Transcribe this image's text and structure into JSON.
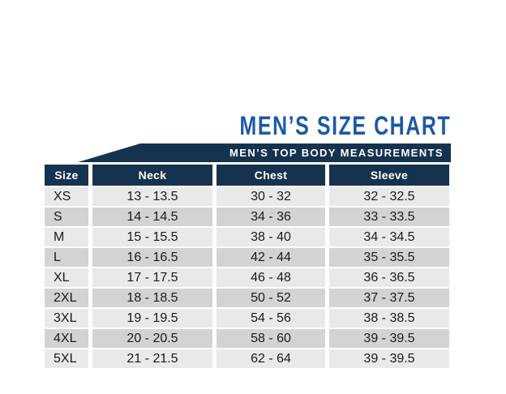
{
  "theme": {
    "page_background": "#ffffff",
    "title_blue": "#1b59a6",
    "navy": "#15334f",
    "banner_text_color": "#ffffff",
    "header_text_color": "#ffffff",
    "row_color_light": "#e9e9e9",
    "row_color_dark": "#d3d3d4",
    "cell_text_color": "#1a1a1a"
  },
  "chart_data": {
    "type": "table",
    "title": "MEN’S SIZE CHART",
    "subtitle": "MEN’S TOP BODY MEASUREMENTS",
    "columns": [
      "Size",
      "Neck",
      "Chest",
      "Sleeve"
    ],
    "rows": [
      [
        "XS",
        "13 - 13.5",
        "30 - 32",
        "32 - 32.5"
      ],
      [
        "S",
        "14 - 14.5",
        "34 - 36",
        "33 - 33.5"
      ],
      [
        "M",
        "15 - 15.5",
        "38 - 40",
        "34 - 34.5"
      ],
      [
        "L",
        "16 - 16.5",
        "42 - 44",
        "35 - 35.5"
      ],
      [
        "XL",
        "17 - 17.5",
        "46 - 48",
        "36 - 36.5"
      ],
      [
        "2XL",
        "18 - 18.5",
        "50 - 52",
        "37 - 37.5"
      ],
      [
        "3XL",
        "19 - 19.5",
        "54 - 56",
        "38 - 38.5"
      ],
      [
        "4XL",
        "20 - 20.5",
        "58 - 60",
        "39 - 39.5"
      ],
      [
        "5XL",
        "21 - 21.5",
        "62 - 64",
        "39 - 39.5"
      ]
    ],
    "layout": {
      "row_striping": "alternating light/dark gray",
      "header_style": "navy cells with white bold text",
      "banner_style": "navy band with slanted left edge above table"
    }
  }
}
